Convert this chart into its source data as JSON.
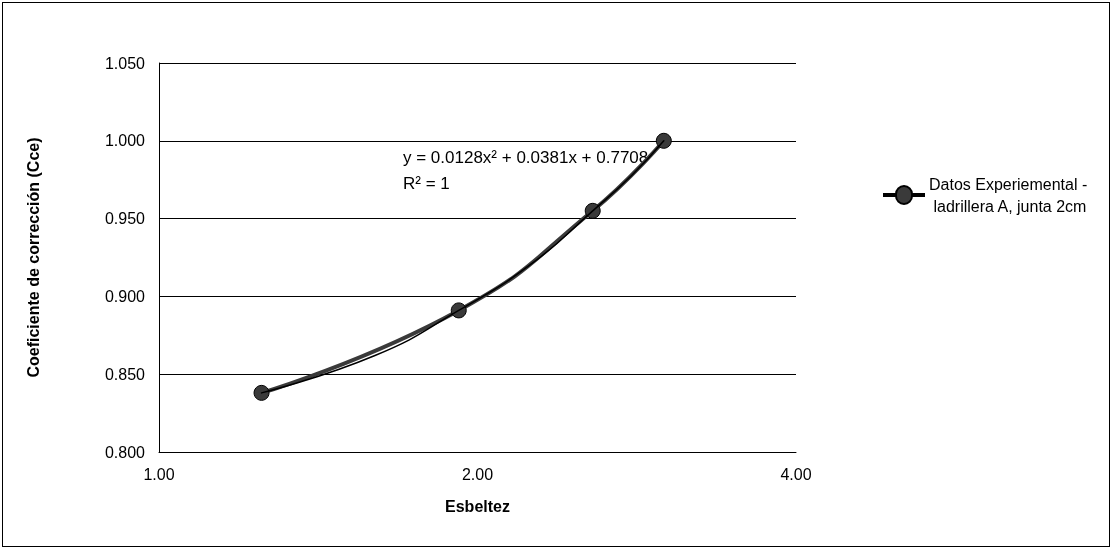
{
  "chart_data": {
    "type": "line",
    "xlabel": "Esbeltez",
    "ylabel": "Coeficiente de corrección (Cce)",
    "log": "x",
    "xlim": [
      1,
      4
    ],
    "xticks": [
      {
        "value": 1,
        "label": "1.00"
      },
      {
        "value": 2,
        "label": "2.00"
      },
      {
        "value": 4,
        "label": "4.00"
      }
    ],
    "ylim": [
      0.8,
      1.05
    ],
    "yticks": [
      {
        "value": 0.8,
        "label": "0.800"
      },
      {
        "value": 0.85,
        "label": "0.850"
      },
      {
        "value": 0.9,
        "label": "0.900"
      },
      {
        "value": 0.95,
        "label": "0.950"
      },
      {
        "value": 1.0,
        "label": "1.000"
      },
      {
        "value": 1.05,
        "label": "1.050"
      }
    ],
    "grid": "y",
    "legend": "right",
    "annotations": [
      "y = 0.0128x² + 0.0381x + 0.7708",
      "R² = 1"
    ],
    "series": [
      {
        "name": "Datos Experiemental - ladrillera A, junta 2cm",
        "color": "#3a3a3a",
        "marker": "circle",
        "x": [
          1.25,
          1.92,
          2.57,
          3.0
        ],
        "values": [
          0.838,
          0.891,
          0.955,
          1.0
        ]
      },
      {
        "type": "line",
        "color": "#000000",
        "marker": "none",
        "x": [
          1.25,
          1.6,
          1.92,
          2.25,
          2.57,
          2.8,
          3.0
        ],
        "values": [
          0.838,
          0.862,
          0.891,
          0.921,
          0.955,
          0.978,
          1.0
        ]
      }
    ]
  }
}
